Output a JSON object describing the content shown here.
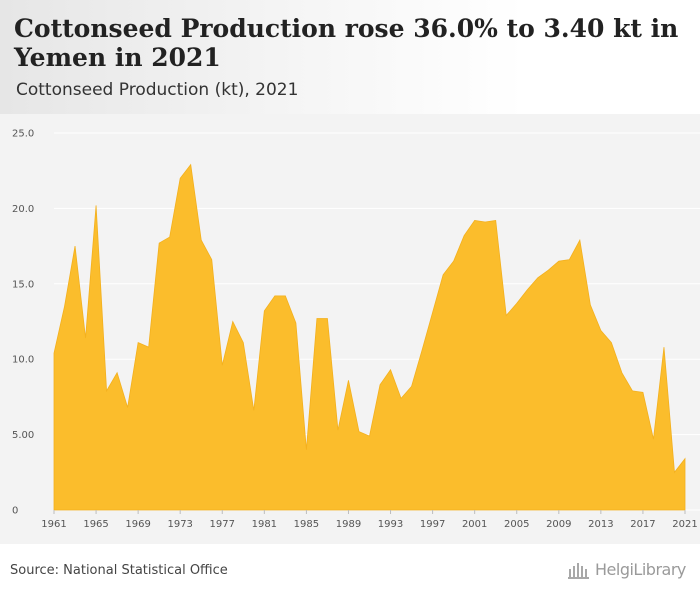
{
  "header": {
    "title": "Cottonseed Production rose 36.0% to 3.40 kt in Yemen in 2021",
    "subtitle": "Cottonseed Production (kt), 2021"
  },
  "footer": {
    "source": "Source: National Statistical Office",
    "logo_text": "HelgiLibrary"
  },
  "colors": {
    "area_fill": "#fbbd2c",
    "area_stroke": "#f3b01e",
    "plot_background": "#f3f3f3",
    "grid": "#ffffff"
  },
  "chart_data": {
    "type": "area",
    "title": "Cottonseed Production rose 36.0% to 3.40 kt in Yemen in 2021",
    "subtitle": "Cottonseed Production (kt), 2021",
    "xlabel": "",
    "ylabel": "",
    "ylim": [
      0,
      25
    ],
    "yticks": [
      "0",
      "5.00",
      "10.0",
      "15.0",
      "20.0",
      "25.0"
    ],
    "ytick_values": [
      0,
      5,
      10,
      15,
      20,
      25
    ],
    "xticks": [
      "1961",
      "1965",
      "1969",
      "1973",
      "1977",
      "1981",
      "1985",
      "1989",
      "1993",
      "1997",
      "2001",
      "2005",
      "2009",
      "2013",
      "2017",
      "2021"
    ],
    "grid": true,
    "legend": "none",
    "x": [
      1961,
      1962,
      1963,
      1964,
      1965,
      1966,
      1967,
      1968,
      1969,
      1970,
      1971,
      1972,
      1973,
      1974,
      1975,
      1976,
      1977,
      1978,
      1979,
      1980,
      1981,
      1982,
      1983,
      1984,
      1985,
      1986,
      1987,
      1988,
      1989,
      1990,
      1991,
      1992,
      1993,
      1994,
      1995,
      1996,
      1997,
      1998,
      1999,
      2000,
      2001,
      2002,
      2003,
      2004,
      2005,
      2006,
      2007,
      2008,
      2009,
      2010,
      2011,
      2012,
      2013,
      2014,
      2015,
      2016,
      2017,
      2018,
      2019,
      2020,
      2021
    ],
    "series": [
      {
        "values": [
          10.4,
          13.5,
          17.5,
          11.4,
          20.2,
          7.9,
          9.1,
          6.8,
          11.1,
          10.8,
          17.7,
          18.1,
          22.0,
          22.9,
          17.9,
          16.6,
          9.6,
          12.5,
          11.1,
          6.6,
          13.2,
          14.2,
          14.2,
          12.4,
          4.0,
          12.7,
          12.7,
          5.3,
          8.6,
          5.2,
          4.9,
          8.3,
          9.3,
          7.4,
          8.2,
          10.6,
          13.1,
          15.6,
          16.5,
          18.2,
          19.2,
          19.1,
          19.2,
          12.9,
          13.7,
          14.6,
          15.4,
          15.9,
          16.5,
          16.6,
          17.9,
          13.6,
          11.9,
          11.1,
          9.1,
          7.9,
          7.8,
          4.7,
          10.8,
          2.5,
          3.4
        ]
      }
    ]
  }
}
